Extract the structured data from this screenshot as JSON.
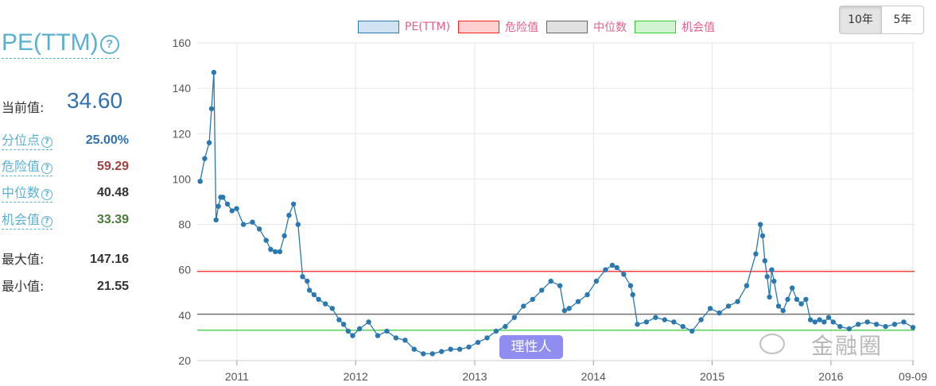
{
  "panel": {
    "title": "PE(TTM)",
    "help_icon": "question-circle-icon",
    "current_label": "当前值:",
    "current_value": "34.60",
    "stats": [
      {
        "label": "分位点",
        "value": "25.00%",
        "help": true,
        "color": "#3070b0"
      },
      {
        "label": "危险值",
        "value": "59.29",
        "help": true,
        "color": "#a04040"
      },
      {
        "label": "中位数",
        "value": "40.48",
        "help": true,
        "color": "#333333"
      },
      {
        "label": "机会值",
        "value": "33.39",
        "help": true,
        "color": "#4a7a3a"
      },
      {
        "label": "最大值:",
        "value": "147.16",
        "help": false,
        "color": "#333333"
      },
      {
        "label": "最小值:",
        "value": "21.55",
        "help": false,
        "color": "#333333"
      }
    ]
  },
  "range_toggle": {
    "options": [
      "10年",
      "5年"
    ],
    "selected": "10年"
  },
  "watermark": {
    "icon": "wechat-icon",
    "text": "金融圈"
  },
  "tag": {
    "text": "理性人"
  },
  "chart_data": {
    "type": "line",
    "ylim": [
      20,
      160
    ],
    "yticks": [
      20,
      40,
      60,
      80,
      100,
      120,
      140,
      160
    ],
    "xlim": [
      "2010-09",
      "2016-09"
    ],
    "xticks": [
      "2011",
      "2012",
      "2013",
      "2014",
      "2015",
      "2016",
      "09-09"
    ],
    "grid": true,
    "legend_position": "top-center",
    "colors": {
      "pe": "#2a78b0",
      "danger": "#ff2020",
      "median": "#666666",
      "opportunity": "#33cc33"
    },
    "series": [
      {
        "name": "PE(TTM)",
        "x": [
          "2010-09-10",
          "2010-09-24",
          "2010-10-08",
          "2010-10-15",
          "2010-10-22",
          "2010-10-29",
          "2010-11-05",
          "2010-11-12",
          "2010-11-19",
          "2010-12-03",
          "2010-12-17",
          "2010-12-31",
          "2011-01-21",
          "2011-02-18",
          "2011-03-11",
          "2011-04-01",
          "2011-04-15",
          "2011-04-29",
          "2011-05-13",
          "2011-05-27",
          "2011-06-10",
          "2011-06-24",
          "2011-07-08",
          "2011-07-22",
          "2011-08-05",
          "2011-08-12",
          "2011-08-26",
          "2011-09-09",
          "2011-09-30",
          "2011-10-21",
          "2011-11-11",
          "2011-11-25",
          "2011-12-09",
          "2011-12-23",
          "2012-01-13",
          "2012-02-10",
          "2012-03-09",
          "2012-04-06",
          "2012-05-04",
          "2012-06-01",
          "2012-06-29",
          "2012-07-27",
          "2012-08-24",
          "2012-09-21",
          "2012-10-19",
          "2012-11-16",
          "2012-12-14",
          "2013-01-11",
          "2013-02-08",
          "2013-03-08",
          "2013-04-05",
          "2013-05-03",
          "2013-05-31",
          "2013-06-28",
          "2013-07-26",
          "2013-08-23",
          "2013-09-20",
          "2013-10-04",
          "2013-10-18",
          "2013-11-15",
          "2013-12-13",
          "2014-01-10",
          "2014-02-07",
          "2014-02-28",
          "2014-03-14",
          "2014-04-04",
          "2014-04-25",
          "2014-05-02",
          "2014-05-16",
          "2014-06-13",
          "2014-07-11",
          "2014-08-08",
          "2014-09-05",
          "2014-10-03",
          "2014-10-31",
          "2014-11-28",
          "2014-12-26",
          "2015-01-23",
          "2015-02-20",
          "2015-03-20",
          "2015-04-17",
          "2015-05-15",
          "2015-05-29",
          "2015-06-05",
          "2015-06-12",
          "2015-06-19",
          "2015-06-26",
          "2015-07-03",
          "2015-07-10",
          "2015-07-24",
          "2015-08-07",
          "2015-08-21",
          "2015-09-04",
          "2015-09-18",
          "2015-10-02",
          "2015-10-16",
          "2015-10-30",
          "2015-11-13",
          "2015-11-27",
          "2015-12-11",
          "2015-12-25",
          "2016-01-08",
          "2016-01-29",
          "2016-02-26",
          "2016-03-25",
          "2016-04-22",
          "2016-05-20",
          "2016-06-17",
          "2016-07-15",
          "2016-08-12",
          "2016-09-09"
        ],
        "values": [
          99,
          109,
          116,
          131,
          147,
          82,
          88,
          92,
          92,
          89,
          86,
          87,
          80,
          81,
          78,
          73,
          69,
          68,
          68,
          75,
          84,
          89,
          80,
          57,
          55,
          51,
          49,
          47,
          45,
          43,
          38,
          36,
          33,
          31,
          34,
          37,
          31,
          33,
          30,
          29,
          25,
          23,
          23,
          24,
          25,
          25,
          26,
          28,
          30,
          33,
          35,
          39,
          44,
          47,
          51,
          55,
          53,
          42,
          43,
          46,
          49,
          55,
          60,
          62,
          61,
          58,
          53,
          49,
          36,
          37,
          39,
          38,
          37,
          35,
          33,
          38,
          43,
          41,
          44,
          46,
          53,
          67,
          80,
          75,
          64,
          57,
          48,
          60,
          55,
          44,
          42,
          47,
          52,
          47,
          45,
          47,
          38,
          37,
          38,
          37,
          39,
          37,
          35,
          34,
          36,
          37,
          36,
          35,
          36,
          37,
          34.6
        ]
      },
      {
        "name": "危险值",
        "value": 59.29
      },
      {
        "name": "中位数",
        "value": 40.48
      },
      {
        "name": "机会值",
        "value": 33.39
      }
    ]
  }
}
